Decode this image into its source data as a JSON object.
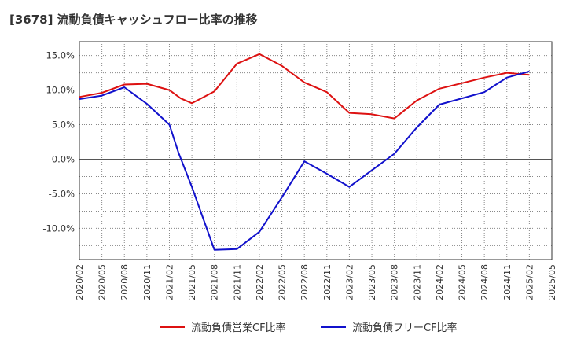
{
  "chart_data": {
    "type": "line",
    "title": "[3678]  流動負債キャッシュフロー比率の推移",
    "xlabel": "",
    "ylabel": "",
    "ylim": [
      -14.5,
      17
    ],
    "y_ticks": [
      15,
      10,
      5,
      0,
      -5,
      -10
    ],
    "y_tick_labels": [
      "15.0%",
      "10.0%",
      "5.0%",
      "0.0%",
      "-5.0%",
      "-10.0%"
    ],
    "x_tick_labels": [
      "2020/02",
      "2020/05",
      "2020/08",
      "2020/11",
      "2021/02",
      "2021/05",
      "2021/08",
      "2021/11",
      "2022/02",
      "2022/05",
      "2022/08",
      "2022/11",
      "2023/02",
      "2023/05",
      "2023/08",
      "2023/11",
      "2024/02",
      "2024/05",
      "2024/08",
      "2024/11",
      "2025/02",
      "2025/05"
    ],
    "grid": true,
    "legend_position": "bottom",
    "series": [
      {
        "name": "流動負債営業CF比率",
        "color": "#dd1111",
        "points": [
          {
            "x": 0,
            "y": 9.0
          },
          {
            "x": 1,
            "y": 9.6
          },
          {
            "x": 2,
            "y": 10.8
          },
          {
            "x": 3,
            "y": 10.9
          },
          {
            "x": 4,
            "y": 10.0
          },
          {
            "x": 4.5,
            "y": 8.8
          },
          {
            "x": 5,
            "y": 8.1
          },
          {
            "x": 6,
            "y": 9.8
          },
          {
            "x": 7,
            "y": 13.8
          },
          {
            "x": 8,
            "y": 15.2
          },
          {
            "x": 9,
            "y": 13.5
          },
          {
            "x": 10,
            "y": 11.1
          },
          {
            "x": 11,
            "y": 9.7
          },
          {
            "x": 12,
            "y": 6.7
          },
          {
            "x": 13,
            "y": 6.5
          },
          {
            "x": 14,
            "y": 5.9
          },
          {
            "x": 15,
            "y": 8.5
          },
          {
            "x": 16,
            "y": 10.2
          },
          {
            "x": 17,
            "y": 11.0
          },
          {
            "x": 18,
            "y": 11.8
          },
          {
            "x": 19,
            "y": 12.5
          },
          {
            "x": 20,
            "y": 12.2
          }
        ]
      },
      {
        "name": "流動負債フリーCF比率",
        "color": "#1111cc",
        "points": [
          {
            "x": 0,
            "y": 8.7
          },
          {
            "x": 1,
            "y": 9.2
          },
          {
            "x": 2,
            "y": 10.4
          },
          {
            "x": 3,
            "y": 8.0
          },
          {
            "x": 4,
            "y": 5.0
          },
          {
            "x": 4.4,
            "y": 1.0
          },
          {
            "x": 5,
            "y": -4.0
          },
          {
            "x": 6,
            "y": -13.1
          },
          {
            "x": 7,
            "y": -13.0
          },
          {
            "x": 8,
            "y": -10.5
          },
          {
            "x": 9,
            "y": -5.5
          },
          {
            "x": 10,
            "y": -0.3
          },
          {
            "x": 11,
            "y": -2.1
          },
          {
            "x": 12,
            "y": -4.0
          },
          {
            "x": 13,
            "y": -1.6
          },
          {
            "x": 14,
            "y": 0.8
          },
          {
            "x": 15,
            "y": 4.6
          },
          {
            "x": 16,
            "y": 7.9
          },
          {
            "x": 17,
            "y": 8.8
          },
          {
            "x": 18,
            "y": 9.7
          },
          {
            "x": 19,
            "y": 11.8
          },
          {
            "x": 20,
            "y": 12.7
          }
        ]
      }
    ]
  }
}
